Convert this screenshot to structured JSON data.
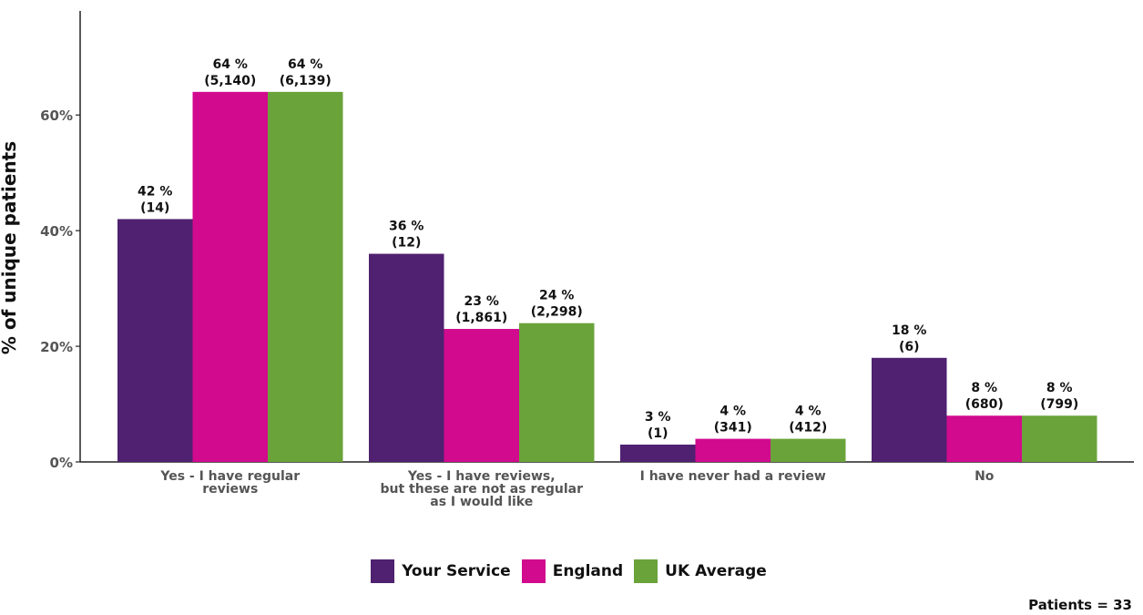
{
  "chart_data": {
    "type": "bar",
    "ylabel": "% of unique patients",
    "ylim": [
      0,
      78
    ],
    "yticks": [
      "0%",
      "20%",
      "40%",
      "60%"
    ],
    "categories": [
      [
        "Yes - I have regular",
        "reviews"
      ],
      [
        "Yes - I have reviews,",
        "but these are not as regular",
        "as I would like"
      ],
      [
        "I have never had a review"
      ],
      [
        "No"
      ]
    ],
    "series": [
      {
        "name": "Your Service",
        "color": "#4f2170",
        "values": [
          42,
          36,
          3,
          18
        ],
        "labels": [
          [
            "42 %",
            "(14)"
          ],
          [
            "36 %",
            "(12)"
          ],
          [
            "3 %",
            "(1)"
          ],
          [
            "18 %",
            "(6)"
          ]
        ]
      },
      {
        "name": "England",
        "color": "#d10a8e",
        "values": [
          64,
          23,
          4,
          8
        ],
        "labels": [
          [
            "64 %",
            "(5,140)"
          ],
          [
            "23 %",
            "(1,861)"
          ],
          [
            "4 %",
            "(341)"
          ],
          [
            "8 %",
            "(680)"
          ]
        ]
      },
      {
        "name": "UK Average",
        "color": "#6aa33a",
        "values": [
          64,
          24,
          4,
          8
        ],
        "labels": [
          [
            "64 %",
            "(6,139)"
          ],
          [
            "24 %",
            "(2,298)"
          ],
          [
            "4 %",
            "(412)"
          ],
          [
            "8 %",
            "(799)"
          ]
        ]
      }
    ],
    "legend_position": "bottom",
    "grid": false
  },
  "footer": {
    "patients": "Patients = 33"
  }
}
